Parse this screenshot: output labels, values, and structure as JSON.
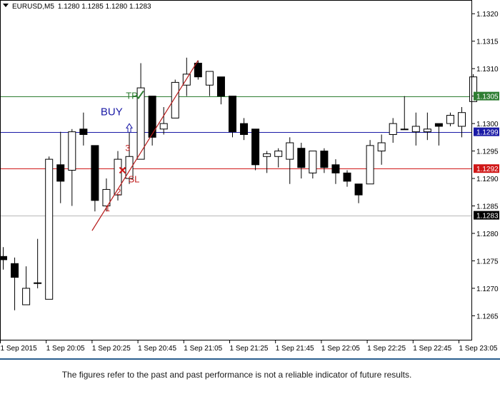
{
  "header": {
    "symbol": "EURUSD,M5",
    "ohlc": "1.1280 1.1285 1.1280 1.1283"
  },
  "disclaimer": "The figures refer to the past and past performance is not a reliable indicator of future results.",
  "chart_data": {
    "type": "candlestick",
    "title": "EURUSD,M5",
    "ylim": [
      1.12605,
      1.13225
    ],
    "y_ticks": [
      "1.1320",
      "1.1315",
      "1.1310",
      "1.1305",
      "1.1300",
      "1.1295",
      "1.1290",
      "1.1285",
      "1.1280",
      "1.1275",
      "1.1270",
      "1.1265"
    ],
    "y_tick_values": [
      1.132,
      1.1315,
      1.131,
      1.1305,
      1.13,
      1.1295,
      1.129,
      1.1285,
      1.128,
      1.1275,
      1.127,
      1.1265
    ],
    "x_labels": [
      {
        "index": 0,
        "text": "1 Sep 2015"
      },
      {
        "index": 4,
        "text": "1 Sep 20:05"
      },
      {
        "index": 8,
        "text": "1 Sep 20:25"
      },
      {
        "index": 12,
        "text": "1 Sep 20:45"
      },
      {
        "index": 16,
        "text": "1 Sep 21:05"
      },
      {
        "index": 20,
        "text": "1 Sep 21:25"
      },
      {
        "index": 24,
        "text": "1 Sep 21:45"
      },
      {
        "index": 28,
        "text": "1 Sep 22:05"
      },
      {
        "index": 32,
        "text": "1 Sep 22:25"
      },
      {
        "index": 36,
        "text": "1 Sep 22:45"
      },
      {
        "index": 40,
        "text": "1 Sep 23:05"
      }
    ],
    "candles": [
      {
        "o": 1.12758,
        "h": 1.12775,
        "l": 1.12734,
        "c": 1.12752
      },
      {
        "o": 1.12745,
        "h": 1.12756,
        "l": 1.1266,
        "c": 1.1272
      },
      {
        "o": 1.1267,
        "h": 1.1274,
        "l": 1.1267,
        "c": 1.127
      },
      {
        "o": 1.1271,
        "h": 1.1279,
        "l": 1.127,
        "c": 1.1271
      },
      {
        "o": 1.1268,
        "h": 1.1294,
        "l": 1.1268,
        "c": 1.12935
      },
      {
        "o": 1.12925,
        "h": 1.12985,
        "l": 1.12855,
        "c": 1.12895
      },
      {
        "o": 1.12915,
        "h": 1.1299,
        "l": 1.1285,
        "c": 1.12985
      },
      {
        "o": 1.1299,
        "h": 1.1302,
        "l": 1.1296,
        "c": 1.1298
      },
      {
        "o": 1.1296,
        "h": 1.1296,
        "l": 1.1284,
        "c": 1.1286
      },
      {
        "o": 1.1285,
        "h": 1.129,
        "l": 1.1284,
        "c": 1.1288
      },
      {
        "o": 1.1287,
        "h": 1.1295,
        "l": 1.1286,
        "c": 1.12935
      },
      {
        "o": 1.129,
        "h": 1.1299,
        "l": 1.1289,
        "c": 1.1294
      },
      {
        "o": 1.12935,
        "h": 1.1311,
        "l": 1.12935,
        "c": 1.13065
      },
      {
        "o": 1.1305,
        "h": 1.1305,
        "l": 1.1296,
        "c": 1.12975
      },
      {
        "o": 1.1299,
        "h": 1.1303,
        "l": 1.1298,
        "c": 1.13
      },
      {
        "o": 1.1301,
        "h": 1.1308,
        "l": 1.1301,
        "c": 1.13075
      },
      {
        "o": 1.1307,
        "h": 1.1312,
        "l": 1.1305,
        "c": 1.1309
      },
      {
        "o": 1.1311,
        "h": 1.13115,
        "l": 1.1308,
        "c": 1.13085
      },
      {
        "o": 1.1307,
        "h": 1.13095,
        "l": 1.1305,
        "c": 1.13095
      },
      {
        "o": 1.13085,
        "h": 1.13085,
        "l": 1.13035,
        "c": 1.1305
      },
      {
        "o": 1.1305,
        "h": 1.1305,
        "l": 1.12975,
        "c": 1.12985
      },
      {
        "o": 1.13,
        "h": 1.1301,
        "l": 1.1297,
        "c": 1.1298
      },
      {
        "o": 1.1299,
        "h": 1.1299,
        "l": 1.12915,
        "c": 1.12925
      },
      {
        "o": 1.1294,
        "h": 1.1295,
        "l": 1.1291,
        "c": 1.12945
      },
      {
        "o": 1.1294,
        "h": 1.12955,
        "l": 1.1292,
        "c": 1.1295
      },
      {
        "o": 1.12935,
        "h": 1.12975,
        "l": 1.1289,
        "c": 1.12965
      },
      {
        "o": 1.12955,
        "h": 1.12965,
        "l": 1.129,
        "c": 1.1292
      },
      {
        "o": 1.1291,
        "h": 1.1295,
        "l": 1.129,
        "c": 1.1295
      },
      {
        "o": 1.1295,
        "h": 1.12955,
        "l": 1.1291,
        "c": 1.1292
      },
      {
        "o": 1.12925,
        "h": 1.12935,
        "l": 1.1289,
        "c": 1.1291
      },
      {
        "o": 1.1291,
        "h": 1.12915,
        "l": 1.12885,
        "c": 1.12895
      },
      {
        "o": 1.1289,
        "h": 1.1289,
        "l": 1.12855,
        "c": 1.1287
      },
      {
        "o": 1.1289,
        "h": 1.1297,
        "l": 1.1289,
        "c": 1.1296
      },
      {
        "o": 1.1295,
        "h": 1.1298,
        "l": 1.12925,
        "c": 1.12965
      },
      {
        "o": 1.1298,
        "h": 1.1301,
        "l": 1.12965,
        "c": 1.13
      },
      {
        "o": 1.1299,
        "h": 1.1305,
        "l": 1.1299,
        "c": 1.1299
      },
      {
        "o": 1.12985,
        "h": 1.1302,
        "l": 1.1296,
        "c": 1.12995
      },
      {
        "o": 1.12985,
        "h": 1.1302,
        "l": 1.1297,
        "c": 1.1299
      },
      {
        "o": 1.13,
        "h": 1.13,
        "l": 1.1296,
        "c": 1.12995
      },
      {
        "o": 1.13,
        "h": 1.1302,
        "l": 1.12995,
        "c": 1.13015
      },
      {
        "o": 1.12995,
        "h": 1.1303,
        "l": 1.12975,
        "c": 1.1302
      },
      {
        "o": 1.1304,
        "h": 1.1309,
        "l": 1.1304,
        "c": 1.13085
      }
    ],
    "hlines": [
      {
        "value": 1.1305,
        "label": "1.1305",
        "color": "#2e7d32",
        "role": "tp"
      },
      {
        "value": 1.12985,
        "label": "1.1299",
        "color": "#1a1aa6",
        "role": "buy"
      },
      {
        "value": 1.12918,
        "label": "1.1292",
        "color": "#d01818",
        "role": "sl"
      },
      {
        "value": 1.12833,
        "label": "1.1283",
        "color": "#b8b8b8",
        "role": "bid"
      }
    ],
    "trendline": {
      "from": {
        "index": 8,
        "y": 1.12805
      },
      "to": {
        "index": 17,
        "y": 1.13115
      },
      "color": "#b81c1c"
    },
    "annotations": [
      {
        "text": "TP",
        "index": 11,
        "y": 1.13045,
        "color": "#2e7d32"
      },
      {
        "text": "BUY",
        "index": 10,
        "y": 1.13015,
        "color": "#1a1aa6"
      },
      {
        "text": "3",
        "index": 11,
        "y": 1.1295,
        "color": "#c02020"
      },
      {
        "text": "SL",
        "index": 11,
        "y": 1.12893,
        "color": "#c02020"
      },
      {
        "text": "2",
        "index": 10,
        "y": 1.1287,
        "color": "#c02020"
      },
      {
        "text": "1",
        "index": 9,
        "y": 1.1284,
        "color": "#c02020"
      }
    ],
    "colors": {
      "bull_fill": "#ffffff",
      "bear_fill": "#000000",
      "frame": "#000000"
    }
  }
}
